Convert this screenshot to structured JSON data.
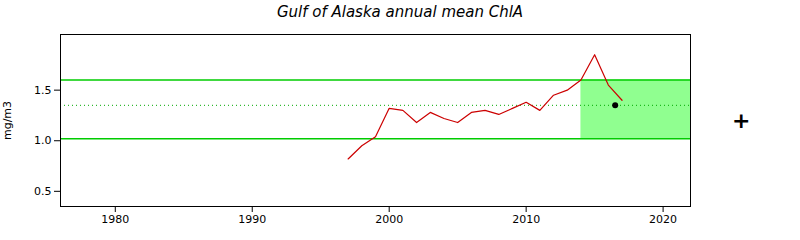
{
  "chart_data": {
    "type": "line",
    "title": "Gulf of Alaska annual mean ChlA",
    "ylabel": "mg/m3",
    "x": [
      1997,
      1998,
      1999,
      2000,
      2001,
      2002,
      2003,
      2004,
      2005,
      2006,
      2007,
      2008,
      2009,
      2010,
      2011,
      2012,
      2013,
      2014,
      2015,
      2016,
      2017
    ],
    "values": [
      0.82,
      0.95,
      1.04,
      1.32,
      1.3,
      1.18,
      1.28,
      1.22,
      1.18,
      1.28,
      1.3,
      1.26,
      1.32,
      1.38,
      1.3,
      1.45,
      1.5,
      1.6,
      1.85,
      1.55,
      1.4
    ],
    "color": "#cc0000",
    "xlim": [
      1976,
      2022
    ],
    "xticks": [
      1980,
      1990,
      2000,
      2010,
      2020
    ],
    "ylim": [
      0.35,
      2.05
    ],
    "yticks": [
      {
        "value": 0.5,
        "label": "0.5"
      },
      {
        "value": 1.0,
        "label": "1.0"
      },
      {
        "value": 1.5,
        "label": "1.5"
      }
    ],
    "grid": false,
    "reference_lines": [
      {
        "value": 1.6,
        "color": "#00cc00"
      },
      {
        "value": 1.02,
        "color": "#00cc00"
      },
      {
        "value": 1.35,
        "color": "#00aa00",
        "line_style": "dotted"
      }
    ],
    "shaded_region": {
      "x": [
        2014,
        2022
      ],
      "y": [
        1.02,
        1.6
      ],
      "color": "#90ff90"
    },
    "points": [
      {
        "x": 2016.5,
        "y": 1.35,
        "color": "#000000"
      }
    ],
    "annotations": [
      {
        "text": "+"
      }
    ]
  }
}
